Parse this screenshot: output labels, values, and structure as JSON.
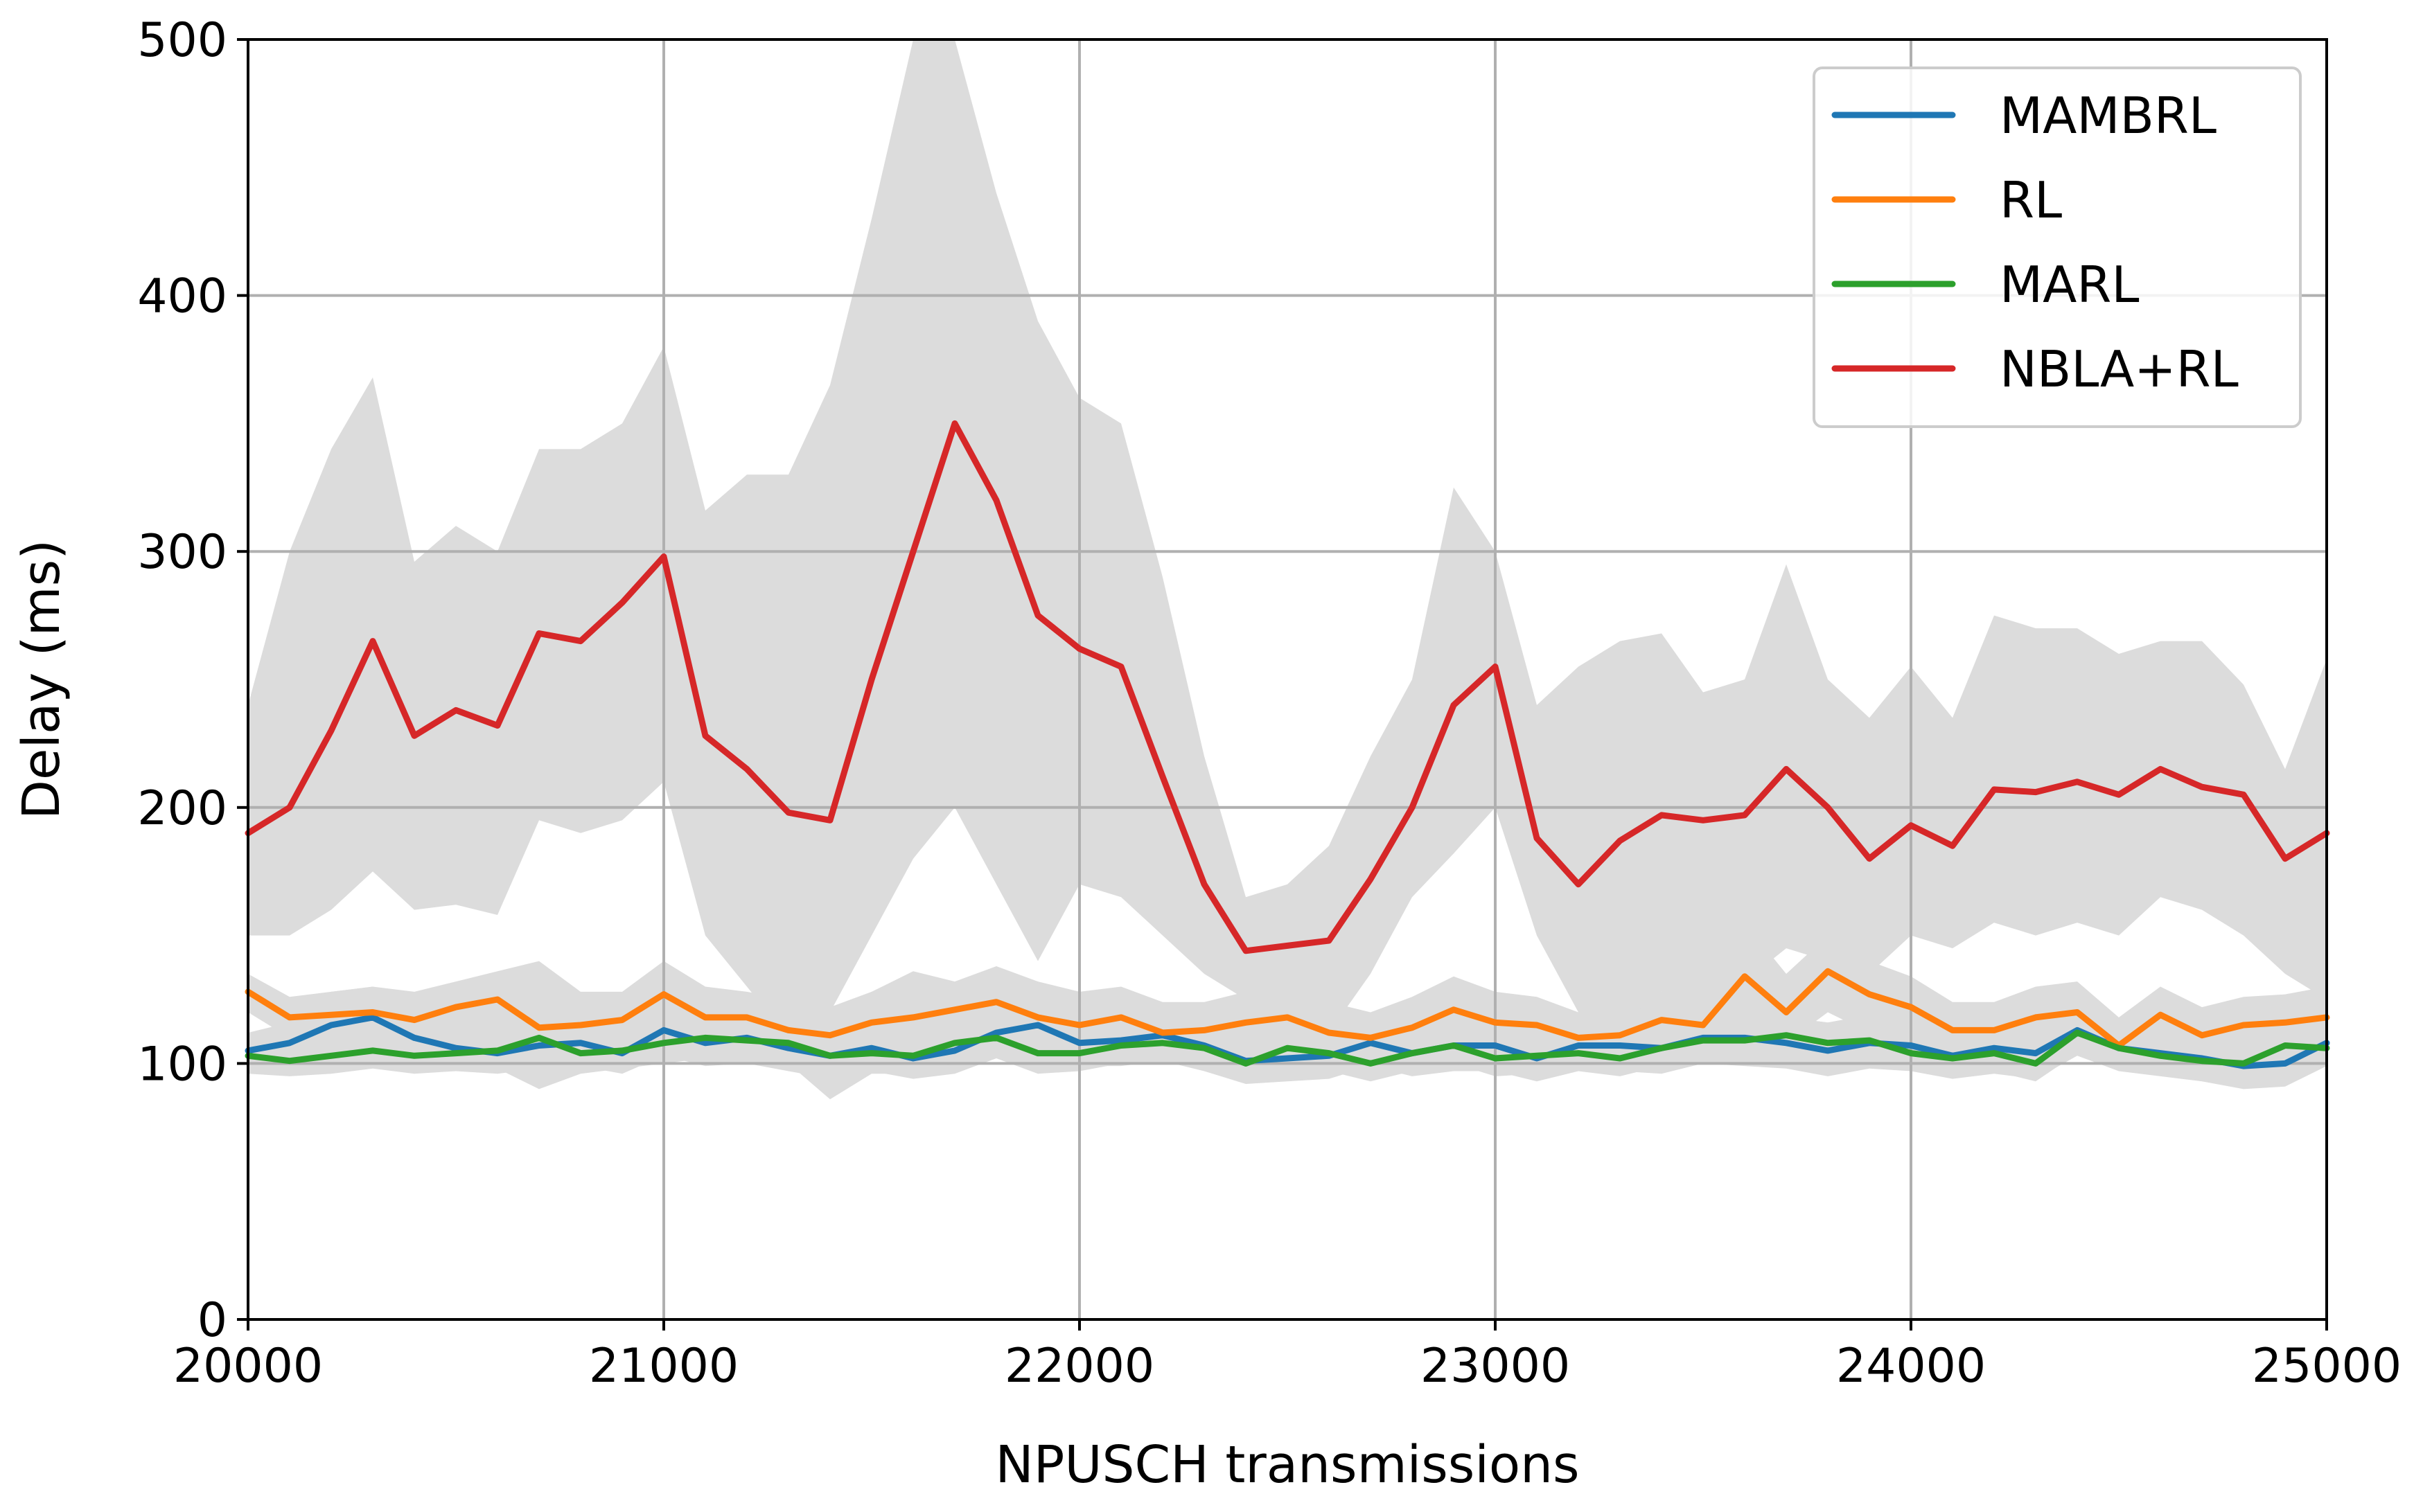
{
  "chart_data": {
    "type": "line",
    "title": "",
    "xlabel": "NPUSCH transmissions",
    "ylabel": "Delay (ms)",
    "xlim": [
      20000,
      25000
    ],
    "ylim": [
      0,
      500
    ],
    "x_ticks": [
      "20000",
      "21000",
      "22000",
      "23000",
      "24000",
      "25000"
    ],
    "y_ticks": [
      "0",
      "100",
      "200",
      "300",
      "400",
      "500"
    ],
    "grid": true,
    "legend_position": "top-right",
    "confidence_band_color": "#dcdcdc",
    "x": [
      20000,
      20100,
      20200,
      20300,
      20400,
      20500,
      20600,
      20700,
      20800,
      20900,
      21000,
      21100,
      21200,
      21300,
      21400,
      21500,
      21600,
      21700,
      21800,
      21900,
      22000,
      22100,
      22200,
      22300,
      22400,
      22500,
      22600,
      22700,
      22800,
      22900,
      23000,
      23100,
      23200,
      23300,
      23400,
      23500,
      23600,
      23700,
      23800,
      23900,
      24000,
      24100,
      24200,
      24300,
      24400,
      24500,
      24600,
      24700,
      24800,
      24900,
      25000
    ],
    "series": [
      {
        "name": "MAMBRL",
        "color": "#1f77b4",
        "values": [
          105,
          108,
          115,
          118,
          110,
          106,
          104,
          107,
          108,
          104,
          113,
          108,
          110,
          106,
          103,
          106,
          102,
          105,
          112,
          115,
          108,
          109,
          111,
          107,
          101,
          102,
          103,
          108,
          104,
          107,
          107,
          102,
          107,
          107,
          106,
          110,
          110,
          108,
          105,
          108,
          107,
          103,
          106,
          104,
          113,
          106,
          104,
          102,
          99,
          100,
          108
        ],
        "band_upper": [
          112,
          116,
          128,
          130,
          122,
          116,
          114,
          118,
          118,
          116,
          124,
          118,
          120,
          116,
          112,
          116,
          113,
          116,
          122,
          126,
          118,
          120,
          121,
          118,
          111,
          112,
          113,
          118,
          114,
          118,
          117,
          112,
          117,
          118,
          116,
          120,
          121,
          118,
          116,
          119,
          118,
          113,
          116,
          115,
          124,
          116,
          114,
          112,
          109,
          111,
          118
        ],
        "band_lower": [
          99,
          101,
          104,
          106,
          100,
          97,
          96,
          98,
          99,
          96,
          103,
          99,
          100,
          97,
          94,
          97,
          94,
          96,
          102,
          104,
          99,
          99,
          101,
          97,
          92,
          93,
          94,
          99,
          95,
          97,
          97,
          93,
          97,
          97,
          96,
          100,
          99,
          98,
          95,
          98,
          97,
          94,
          96,
          94,
          103,
          97,
          95,
          93,
          90,
          91,
          99
        ]
      },
      {
        "name": "RL",
        "color": "#ff7f0e",
        "values": [
          128,
          118,
          119,
          120,
          117,
          122,
          125,
          114,
          115,
          117,
          127,
          118,
          118,
          113,
          111,
          116,
          118,
          121,
          124,
          118,
          115,
          118,
          112,
          113,
          116,
          118,
          112,
          110,
          114,
          121,
          116,
          115,
          110,
          111,
          117,
          115,
          134,
          120,
          136,
          127,
          122,
          113,
          113,
          118,
          120,
          107,
          119,
          111,
          115,
          116,
          118
        ],
        "band_upper": [
          135,
          126,
          128,
          130,
          128,
          132,
          136,
          140,
          128,
          128,
          140,
          130,
          128,
          125,
          122,
          128,
          136,
          132,
          138,
          132,
          128,
          130,
          124,
          124,
          128,
          130,
          124,
          120,
          126,
          134,
          128,
          126,
          120,
          122,
          128,
          140,
          155,
          135,
          150,
          140,
          134,
          124,
          124,
          130,
          132,
          118,
          130,
          122,
          126,
          127,
          130
        ],
        "band_lower": [
          120,
          110,
          110,
          108,
          106,
          110,
          112,
          100,
          104,
          106,
          114,
          106,
          108,
          102,
          100,
          104,
          102,
          108,
          110,
          106,
          104,
          106,
          102,
          102,
          104,
          106,
          102,
          100,
          103,
          108,
          104,
          104,
          100,
          100,
          106,
          104,
          116,
          108,
          120,
          112,
          110,
          102,
          102,
          106,
          108,
          98,
          106,
          100,
          104,
          104,
          106
        ]
      },
      {
        "name": "MARL",
        "color": "#2ca02c",
        "values": [
          103,
          101,
          103,
          105,
          103,
          104,
          105,
          110,
          104,
          105,
          108,
          110,
          109,
          108,
          103,
          104,
          103,
          108,
          110,
          104,
          104,
          107,
          108,
          106,
          100,
          106,
          104,
          100,
          104,
          107,
          102,
          103,
          104,
          102,
          106,
          109,
          109,
          111,
          108,
          109,
          104,
          102,
          104,
          100,
          112,
          106,
          103,
          101,
          100,
          107,
          106
        ],
        "band_upper": [
          110,
          108,
          110,
          112,
          110,
          111,
          112,
          120,
          112,
          112,
          116,
          118,
          117,
          116,
          110,
          111,
          110,
          116,
          118,
          112,
          111,
          114,
          116,
          113,
          107,
          113,
          111,
          107,
          111,
          114,
          109,
          110,
          111,
          109,
          113,
          117,
          117,
          118,
          116,
          117,
          111,
          109,
          111,
          107,
          120,
          114,
          110,
          108,
          107,
          114,
          113
        ],
        "band_lower": [
          96,
          95,
          96,
          98,
          96,
          97,
          98,
          90,
          96,
          98,
          100,
          102,
          101,
          100,
          86,
          96,
          96,
          100,
          102,
          96,
          97,
          100,
          100,
          99,
          93,
          99,
          97,
          93,
          97,
          100,
          95,
          96,
          97,
          95,
          99,
          101,
          101,
          103,
          100,
          101,
          97,
          95,
          97,
          93,
          104,
          98,
          96,
          94,
          93,
          100,
          99
        ]
      },
      {
        "name": "NBLA+RL",
        "color": "#d62728",
        "values": [
          190,
          200,
          230,
          265,
          228,
          238,
          232,
          268,
          265,
          280,
          298,
          228,
          215,
          198,
          195,
          250,
          300,
          350,
          320,
          275,
          262,
          255,
          212,
          170,
          144,
          146,
          148,
          172,
          200,
          240,
          255,
          188,
          170,
          187,
          197,
          195,
          197,
          215,
          200,
          180,
          193,
          185,
          207,
          206,
          210,
          205,
          215,
          208,
          205,
          180,
          190
        ],
        "band_upper": [
          240,
          300,
          340,
          368,
          296,
          310,
          300,
          340,
          340,
          350,
          380,
          316,
          330,
          330,
          365,
          430,
          510,
          505,
          440,
          390,
          360,
          350,
          290,
          220,
          165,
          170,
          185,
          220,
          250,
          325,
          300,
          240,
          255,
          265,
          268,
          245,
          250,
          295,
          250,
          235,
          255,
          235,
          275,
          270,
          270,
          260,
          265,
          265,
          248,
          215,
          258
        ],
        "band_lower": [
          150,
          150,
          160,
          175,
          160,
          162,
          158,
          195,
          190,
          195,
          210,
          150,
          130,
          110,
          120,
          150,
          180,
          200,
          170,
          140,
          170,
          165,
          150,
          135,
          125,
          125,
          112,
          135,
          165,
          182,
          200,
          150,
          120,
          115,
          128,
          130,
          132,
          145,
          140,
          135,
          150,
          145,
          155,
          150,
          155,
          150,
          165,
          160,
          150,
          135,
          125
        ]
      }
    ]
  }
}
